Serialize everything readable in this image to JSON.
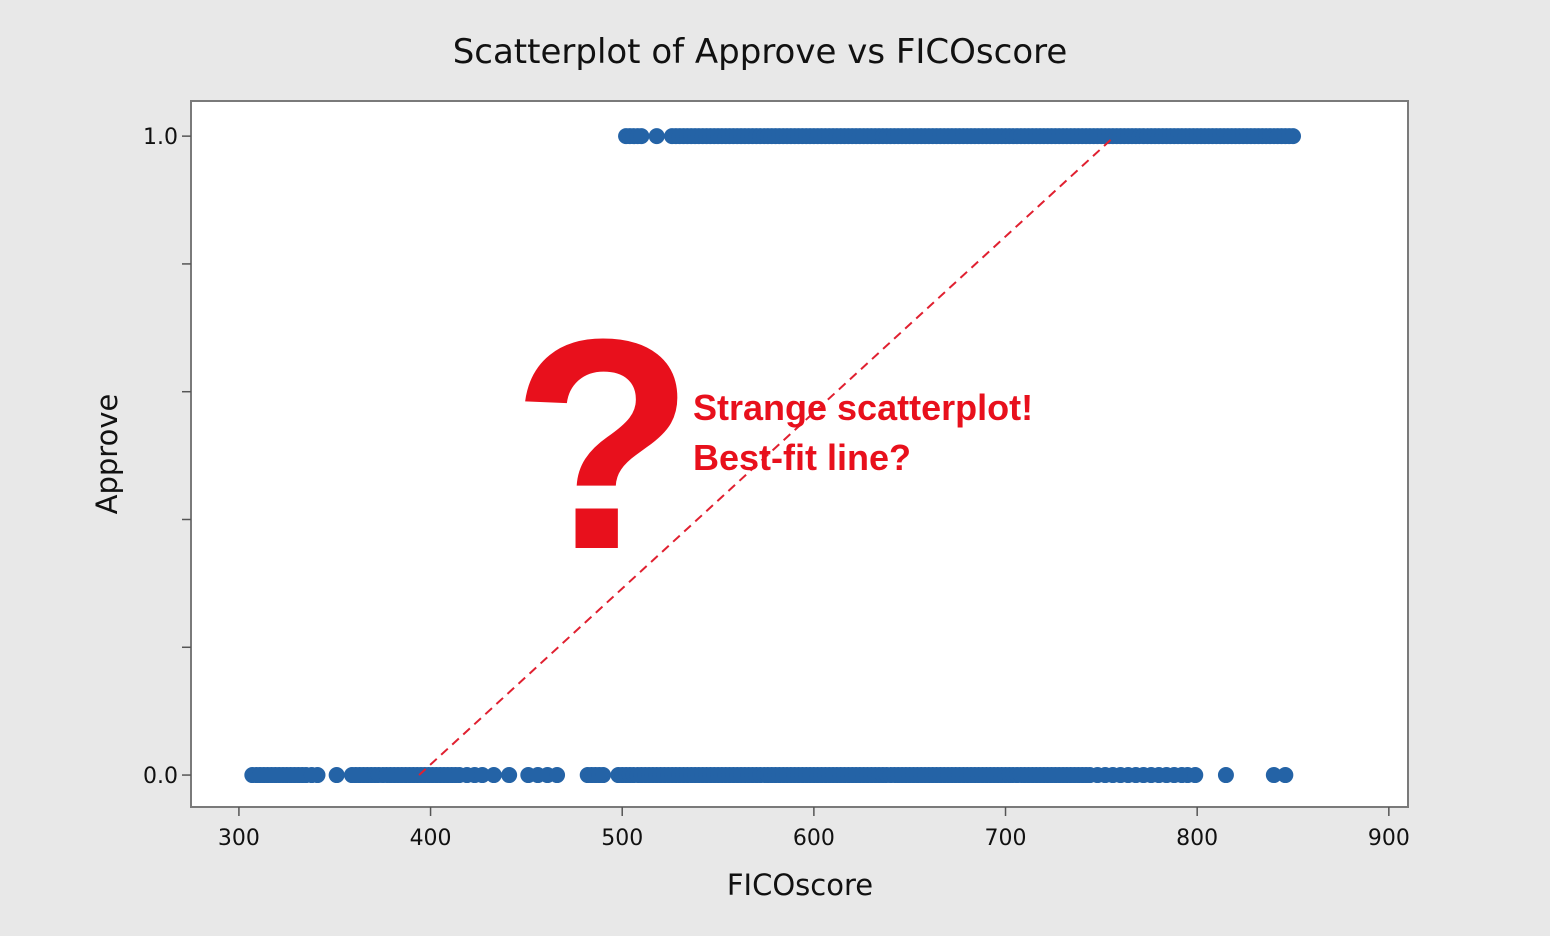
{
  "chart_data": {
    "type": "scatter",
    "title": "Scatterplot of Approve vs FICOscore",
    "xlabel": "FICOscore",
    "ylabel": "Approve",
    "xlim": [
      275,
      910
    ],
    "ylim": [
      -0.05,
      1.055
    ],
    "x_ticks": [
      300,
      400,
      500,
      600,
      700,
      800,
      900
    ],
    "x_tick_labels": [
      "300",
      "400",
      "500",
      "600",
      "700",
      "800",
      "900"
    ],
    "y_ticks": [
      0.0,
      0.2,
      0.4,
      0.6,
      0.8,
      1.0
    ],
    "y_tick_labels": [
      "0.0",
      "",
      "",
      "",
      "",
      "1.0"
    ],
    "grid": false,
    "marker_color": "#2463a6",
    "series": [
      {
        "y": 1.0,
        "x": [
          502,
          504,
          506,
          508,
          510,
          518,
          526,
          528,
          530,
          532,
          534,
          536,
          538,
          540,
          542,
          544,
          546,
          548,
          550,
          552,
          554,
          556,
          558,
          560,
          562,
          564,
          566,
          568,
          570,
          572,
          574,
          576,
          578,
          580,
          582,
          584,
          586,
          588,
          590,
          592,
          594,
          596,
          598,
          600,
          602,
          604,
          606,
          608,
          610,
          612,
          614,
          616,
          618,
          620,
          622,
          624,
          626,
          628,
          630,
          632,
          634,
          636,
          638,
          640,
          642,
          644,
          646,
          648,
          650,
          652,
          654,
          656,
          658,
          660,
          662,
          664,
          666,
          668,
          670,
          672,
          674,
          676,
          678,
          680,
          682,
          684,
          686,
          688,
          690,
          692,
          694,
          696,
          698,
          700,
          702,
          704,
          706,
          708,
          710,
          712,
          714,
          716,
          718,
          720,
          722,
          724,
          726,
          728,
          730,
          732,
          734,
          736,
          738,
          740,
          742,
          744,
          746,
          748,
          750,
          752,
          754,
          756,
          758,
          760,
          762,
          764,
          766,
          768,
          770,
          772,
          774,
          776,
          778,
          780,
          782,
          784,
          786,
          788,
          790,
          792,
          794,
          796,
          798,
          800,
          802,
          804,
          806,
          808,
          810,
          812,
          814,
          816,
          818,
          820,
          822,
          824,
          826,
          828,
          830,
          832,
          834,
          836,
          838,
          840,
          842,
          844,
          846,
          848,
          850
        ]
      },
      {
        "y": 0.0,
        "x": [
          307,
          309,
          311,
          313,
          315,
          317,
          319,
          321,
          323,
          325,
          327,
          329,
          331,
          333,
          335,
          338,
          341,
          351,
          359,
          361,
          363,
          365,
          367,
          369,
          371,
          373,
          375,
          377,
          379,
          381,
          383,
          385,
          387,
          389,
          391,
          393,
          395,
          397,
          399,
          401,
          403,
          405,
          407,
          409,
          411,
          413,
          415,
          419,
          423,
          427,
          433,
          441,
          451,
          456,
          461,
          466,
          482,
          484,
          486,
          488,
          490,
          498,
          500,
          502,
          504,
          506,
          508,
          510,
          512,
          514,
          516,
          518,
          520,
          522,
          524,
          526,
          528,
          530,
          532,
          534,
          536,
          538,
          540,
          542,
          544,
          546,
          548,
          550,
          552,
          554,
          556,
          558,
          560,
          562,
          564,
          566,
          568,
          570,
          572,
          574,
          576,
          578,
          580,
          582,
          584,
          586,
          588,
          590,
          592,
          594,
          596,
          598,
          600,
          602,
          604,
          606,
          608,
          610,
          612,
          614,
          616,
          618,
          620,
          622,
          624,
          626,
          628,
          630,
          632,
          634,
          636,
          638,
          640,
          642,
          644,
          646,
          648,
          650,
          652,
          654,
          656,
          658,
          660,
          662,
          664,
          666,
          668,
          670,
          672,
          674,
          676,
          678,
          680,
          682,
          684,
          686,
          688,
          690,
          692,
          694,
          696,
          698,
          700,
          702,
          704,
          706,
          708,
          710,
          712,
          714,
          716,
          718,
          720,
          722,
          724,
          726,
          728,
          730,
          732,
          734,
          736,
          738,
          740,
          742,
          744,
          748,
          752,
          756,
          760,
          764,
          768,
          772,
          776,
          780,
          784,
          788,
          792,
          795,
          799,
          815,
          840,
          846
        ]
      }
    ],
    "reference_line": {
      "style": "dashed",
      "color": "#e02030",
      "from": [
        394,
        0.0
      ],
      "to": [
        757,
        1.0
      ]
    },
    "annotation": {
      "symbol": "?",
      "lines": [
        "Strange scatterplot!",
        "Best-fit line?"
      ],
      "color": "#e8101c"
    }
  }
}
